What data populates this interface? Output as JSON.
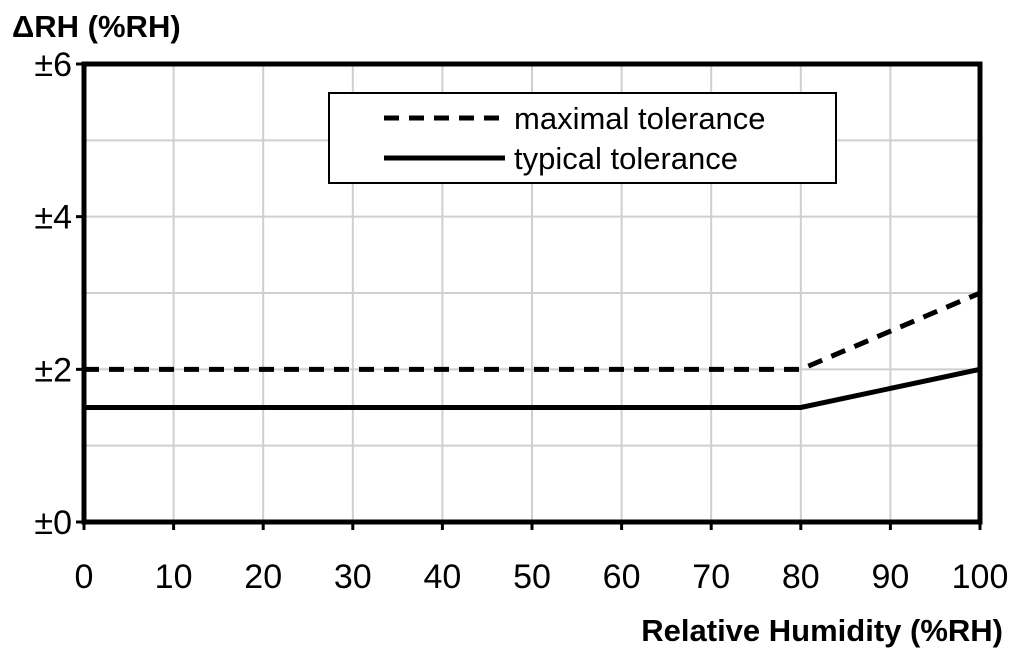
{
  "chart_data": {
    "type": "line",
    "title": "",
    "ylabel": "ΔRH (%RH)",
    "xlabel": "Relative Humidity (%RH)",
    "xlim": [
      0,
      100
    ],
    "ylim": [
      0,
      6
    ],
    "x_ticks": [
      0,
      10,
      20,
      30,
      40,
      50,
      60,
      70,
      80,
      90,
      100
    ],
    "x_tick_labels": [
      "0",
      "10",
      "20",
      "30",
      "40",
      "50",
      "60",
      "70",
      "80",
      "90",
      "100"
    ],
    "y_ticks": [
      0,
      2,
      4,
      6
    ],
    "y_tick_labels": [
      "±0",
      "±2",
      "±4",
      "±6"
    ],
    "grid": true,
    "legend_position": "top-right",
    "series": [
      {
        "name": "maximal tolerance",
        "style": "dashed",
        "x": [
          0,
          80,
          100
        ],
        "y": [
          2,
          2,
          3
        ]
      },
      {
        "name": "typical tolerance",
        "style": "solid",
        "x": [
          0,
          80,
          100
        ],
        "y": [
          1.5,
          1.5,
          2
        ]
      }
    ],
    "colors": {
      "line": "#000000",
      "grid": "#cfcfcf",
      "background": "#ffffff"
    }
  }
}
